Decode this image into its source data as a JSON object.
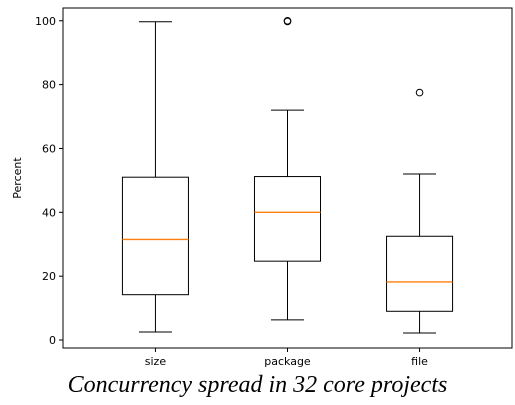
{
  "caption": "Concurrency spread in 32 core projects",
  "chart_data": {
    "type": "box",
    "title": "",
    "xlabel": "",
    "ylabel": "Percent",
    "ylim": [
      -2.5,
      104
    ],
    "yticks": [
      0,
      20,
      40,
      60,
      80,
      100
    ],
    "grid": false,
    "categories": [
      "size",
      "package",
      "file"
    ],
    "boxes": [
      {
        "category": "size",
        "whisker_low": 2.5,
        "q1": 14.2,
        "median": 31.5,
        "q3": 51.0,
        "whisker_high": 99.7,
        "outliers": []
      },
      {
        "category": "package",
        "whisker_low": 6.3,
        "q1": 24.7,
        "median": 40.0,
        "q3": 51.2,
        "whisker_high": 72.0,
        "outliers": [
          99.8,
          100.0
        ]
      },
      {
        "category": "file",
        "whisker_low": 2.2,
        "q1": 9.0,
        "median": 18.2,
        "q3": 32.5,
        "whisker_high": 52.0,
        "outliers": [
          77.5
        ]
      }
    ],
    "colors": {
      "box": "#000000",
      "median": "#ff7f0e",
      "whisker": "#000000",
      "outlier": "#000000"
    }
  }
}
